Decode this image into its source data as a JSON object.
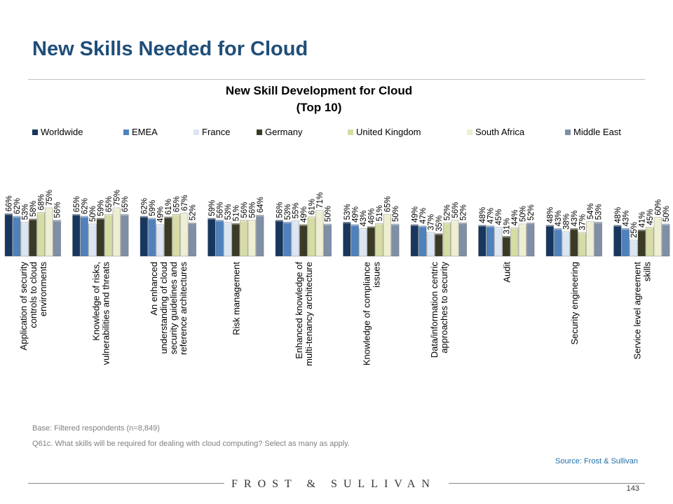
{
  "slide": {
    "title": "New Skills Needed for Cloud",
    "base_note": "Base: Filtered respondents (n=8,849)",
    "question_note": "Q61c. What skills will be required for dealing with cloud computing? Select as many as apply.",
    "source": "Source: Frost & Sullivan",
    "brand": "FROST & SULLIVAN",
    "page_number": "143"
  },
  "chart_data": {
    "type": "bar",
    "title": "New Skill Development for Cloud",
    "subtitle": "(Top 10)",
    "value_suffix": "%",
    "ylim": [
      0,
      100
    ],
    "grid": false,
    "legend_position": "top",
    "categories": [
      "Application of security controls to cloud environments",
      "Knowledge of risks, vulnerabilities and threats",
      "An enhanced understanding of cloud security guidelines and reference architectures",
      "Risk management",
      "Enhanced knowledge of multi-tenancy architecture",
      "Knowledge of compliance issues",
      "Data/information centric approaches to security",
      "Audit",
      "Security engineering",
      "Service level agreement skills"
    ],
    "category_lines": [
      [
        "Application of security",
        "controls to cloud",
        "environments"
      ],
      [
        "Knowledge of risks,",
        "vulnerabilities and threats"
      ],
      [
        "An enhanced",
        "understanding of cloud",
        "security guidelines and",
        "reference architectures"
      ],
      [
        "Risk management"
      ],
      [
        "Enhanced knowledge of",
        "multi-tenancy architecture"
      ],
      [
        "Knowledge of compliance",
        "issues"
      ],
      [
        "Data/information centric",
        "approaches to security"
      ],
      [
        "Audit"
      ],
      [
        "Security engineering"
      ],
      [
        "Service level agreement",
        "skills"
      ]
    ],
    "series": [
      {
        "name": "Worldwide",
        "color": "#17375e",
        "values": [
          66,
          65,
          62,
          59,
          56,
          53,
          49,
          48,
          48,
          48
        ]
      },
      {
        "name": "EMEA",
        "color": "#4f81bd",
        "values": [
          62,
          62,
          59,
          56,
          53,
          49,
          47,
          47,
          43,
          43
        ]
      },
      {
        "name": "France",
        "color": "#dce6f2",
        "values": [
          53,
          50,
          49,
          53,
          55,
          43,
          37,
          45,
          38,
          25
        ]
      },
      {
        "name": "Germany",
        "color": "#3a3a25",
        "values": [
          58,
          59,
          61,
          51,
          49,
          46,
          35,
          31,
          43,
          41
        ]
      },
      {
        "name": "United Kingdom",
        "color": "#d6dca4",
        "values": [
          68,
          65,
          65,
          56,
          61,
          51,
          52,
          44,
          37,
          45
        ]
      },
      {
        "name": "South Africa",
        "color": "#eeeed2",
        "values": [
          75,
          75,
          67,
          56,
          71,
          65,
          56,
          50,
          54,
          60
        ]
      },
      {
        "name": "Middle East",
        "color": "#7f8fa6",
        "values": [
          56,
          65,
          52,
          64,
          50,
          50,
          52,
          52,
          53,
          50
        ]
      }
    ]
  }
}
